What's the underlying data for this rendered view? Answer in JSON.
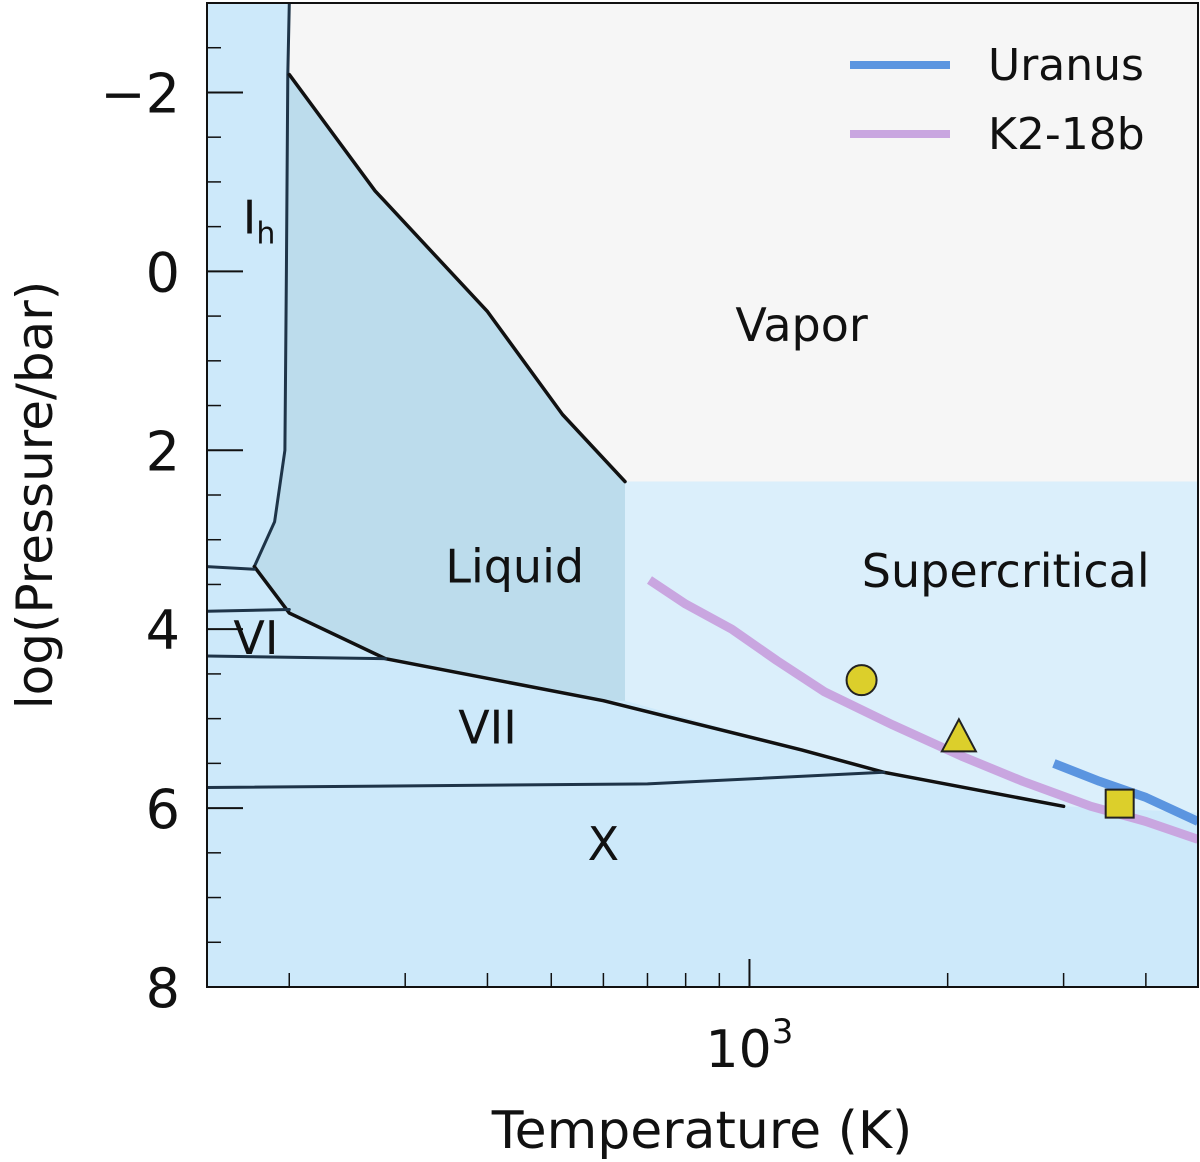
{
  "chart_data": {
    "type": "line",
    "xlabel": "Temperature (K)",
    "ylabel": "log(Pressure/bar)",
    "x_scale": "log",
    "xlim": [
      150,
      4800
    ],
    "ylim": [
      8,
      -3
    ],
    "y_inverted": true,
    "x_major_ticks": [
      {
        "value": 1000,
        "base": "10",
        "exponent": "3"
      }
    ],
    "x_minor_ticks": [
      200,
      300,
      400,
      500,
      600,
      700,
      800,
      900,
      2000,
      3000,
      4000
    ],
    "y_ticks": [
      {
        "value": -2,
        "label": "−2"
      },
      {
        "value": 0,
        "label": "0"
      },
      {
        "value": 2,
        "label": "2"
      },
      {
        "value": 4,
        "label": "4"
      },
      {
        "value": 6,
        "label": "6"
      },
      {
        "value": 8,
        "label": "8"
      }
    ],
    "y_minor_ticks": [
      -2.5,
      -1.5,
      -1,
      -0.5,
      0.5,
      1,
      1.5,
      2.5,
      3,
      3.5,
      4.5,
      5,
      5.5,
      6.5,
      7,
      7.5
    ],
    "grid": false,
    "legend_position": "top-right",
    "colors": {
      "ice_region": "#cde9fa",
      "vapor_region": "#f6f6f6",
      "liquid_region": "#bcdcec",
      "supercritical_region": "#dbeffb",
      "boundary": "#111111",
      "ice_boundary": "#1e3448",
      "uranus": "#5b95e0",
      "k2_18b": "#c9a6e0",
      "marker_fill": "#dccf2b",
      "marker_edge": "#222222"
    },
    "regions": [
      {
        "label": "I",
        "subscript": "h",
        "x": 180,
        "y": -0.6
      },
      {
        "label": "Vapor",
        "x": 1200,
        "y": 0.6
      },
      {
        "label": "Liquid",
        "x": 440,
        "y": 3.3
      },
      {
        "label": "Supercritical",
        "x": 2450,
        "y": 3.35
      },
      {
        "label": "VI",
        "x": 178,
        "y": 4.1
      },
      {
        "label": "VII",
        "x": 400,
        "y": 5.1
      },
      {
        "label": "X",
        "x": 600,
        "y": 6.4
      }
    ],
    "series": [
      {
        "name": "Uranus",
        "x": [
          2900,
          3400,
          4000,
          4800
        ],
        "y": [
          5.5,
          5.7,
          5.88,
          6.15
        ]
      },
      {
        "name": "K2-18b",
        "x": [
          705,
          800,
          940,
          1100,
          1300,
          1650,
          2100,
          2600,
          3300,
          4000,
          4800
        ],
        "y": [
          3.45,
          3.72,
          4.0,
          4.35,
          4.7,
          5.07,
          5.42,
          5.7,
          5.98,
          6.15,
          6.35
        ]
      }
    ],
    "markers": [
      {
        "shape": "circle",
        "x": 1480,
        "y": 4.57
      },
      {
        "shape": "triangle",
        "x": 2080,
        "y": 5.22
      },
      {
        "shape": "square",
        "x": 3650,
        "y": 5.95
      }
    ],
    "phase_boundaries": [
      {
        "id": "melting-ih",
        "x": [
          200,
          199,
          198,
          197,
          190,
          177
        ],
        "y": [
          -3,
          -2.2,
          0,
          2,
          2.8,
          3.3
        ]
      },
      {
        "id": "vaporization",
        "x": [
          200,
          270,
          400,
          520,
          647
        ],
        "y": [
          -2.2,
          -0.9,
          0.45,
          1.6,
          2.35
        ]
      },
      {
        "id": "melting-high",
        "x": [
          177,
          200,
          280,
          600,
          1200,
          1600,
          3000
        ],
        "y": [
          3.3,
          3.82,
          4.33,
          4.8,
          5.35,
          5.6,
          5.98
        ]
      },
      {
        "id": "ih-iii-boundary",
        "x": [
          150,
          177
        ],
        "y": [
          3.3,
          3.33
        ]
      },
      {
        "id": "vi-boundary",
        "x": [
          150,
          200
        ],
        "y": [
          3.8,
          3.78
        ]
      },
      {
        "id": "vi-vii-boundary",
        "x": [
          150,
          280
        ],
        "y": [
          4.3,
          4.33
        ]
      },
      {
        "id": "vii-x-boundary",
        "x": [
          150,
          700,
          1600
        ],
        "y": [
          5.77,
          5.73,
          5.6
        ]
      }
    ],
    "critical_point": {
      "x": 647,
      "y": 2.35
    }
  }
}
